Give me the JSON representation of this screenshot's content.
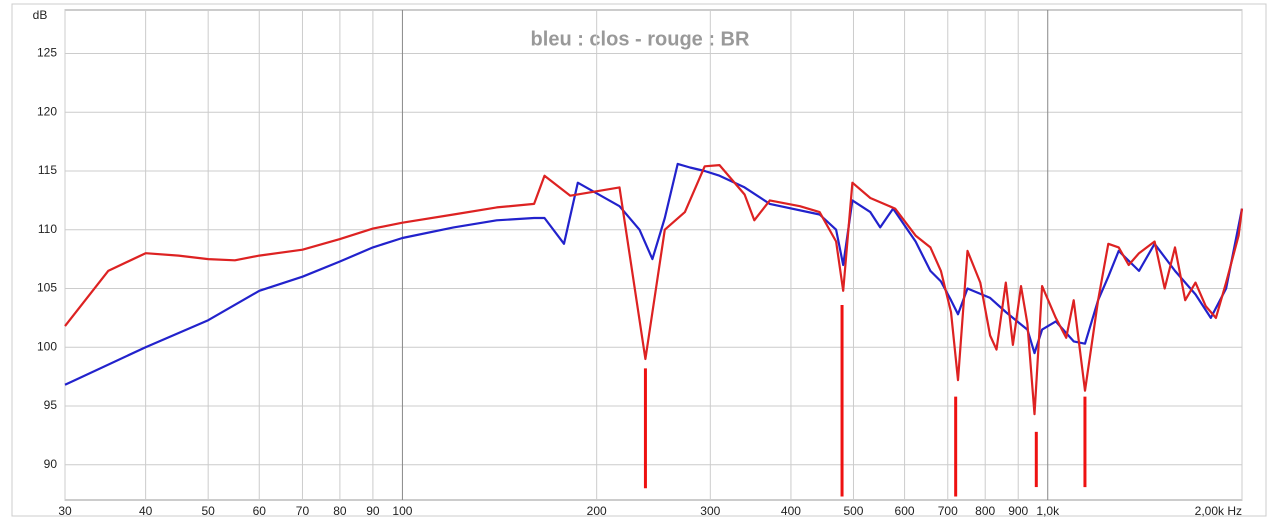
{
  "chart_data": {
    "type": "line",
    "title": "bleu : clos - rouge : BR",
    "y_label": "dB",
    "xscale": "log",
    "grid": true,
    "xlim": [
      30,
      2000
    ],
    "ylim": [
      87,
      128.7
    ],
    "xticks": [
      30,
      40,
      50,
      60,
      70,
      80,
      90,
      100,
      200,
      300,
      400,
      500,
      600,
      700,
      800,
      900,
      {
        "value": 1000,
        "label": "1,0k"
      },
      {
        "value": 2000,
        "label": "2,00k Hz"
      }
    ],
    "yticks": [
      90,
      95,
      100,
      105,
      110,
      115,
      120,
      125
    ],
    "series": [
      {
        "name": "bleu",
        "color": "#2222cc",
        "x": [
          30,
          40,
          50,
          60,
          70,
          80,
          90,
          100,
          120,
          140,
          160,
          166,
          178,
          187,
          217,
          233,
          244,
          255,
          267,
          279,
          294,
          310,
          339,
          371,
          443,
          470,
          482,
          498,
          531,
          550,
          576,
          624,
          658,
          683,
          708,
          726,
          751,
          814,
          861,
          883,
          930,
          954,
          980,
          1029,
          1097,
          1142,
          1197,
          1241,
          1288,
          1385,
          1464,
          1575,
          1694,
          1789,
          1890,
          2000
        ],
        "values": [
          96.8,
          100,
          102.3,
          104.8,
          106,
          107.3,
          108.5,
          109.3,
          110.2,
          110.8,
          111,
          111,
          108.8,
          114,
          112,
          110,
          107.5,
          111,
          115.6,
          115.3,
          115,
          114.6,
          113.6,
          112.2,
          111.3,
          110,
          107,
          112.5,
          111.5,
          110.2,
          111.8,
          109,
          106.5,
          105.6,
          104,
          102.8,
          105,
          104.2,
          103,
          102.5,
          101.5,
          99.5,
          101.5,
          102.2,
          100.5,
          100.3,
          104,
          106,
          108.2,
          106.5,
          108.8,
          106.5,
          104.5,
          102.5,
          105,
          111.8
        ]
      },
      {
        "name": "rouge",
        "color": "#dd2222",
        "x": [
          30,
          35,
          40,
          45,
          50,
          55,
          60,
          70,
          80,
          90,
          100,
          120,
          140,
          160,
          166,
          182,
          217,
          238,
          255,
          274,
          294,
          310,
          339,
          351,
          371,
          413,
          443,
          470,
          482,
          498,
          531,
          580,
          624,
          658,
          683,
          708,
          726,
          751,
          786,
          814,
          833,
          861,
          883,
          909,
          930,
          954,
          980,
          1029,
          1068,
          1097,
          1142,
          1197,
          1241,
          1288,
          1335,
          1385,
          1464,
          1518,
          1575,
          1633,
          1694,
          1757,
          1822,
          1890,
          1976,
          2000
        ],
        "values": [
          101.8,
          106.5,
          108,
          107.8,
          107.5,
          107.4,
          107.8,
          108.3,
          109.2,
          110.1,
          110.6,
          111.3,
          111.9,
          112.2,
          114.6,
          112.9,
          113.6,
          99,
          110,
          111.5,
          115.4,
          115.5,
          113,
          110.8,
          112.5,
          112,
          111.5,
          109,
          104.8,
          114,
          112.7,
          111.8,
          109.5,
          108.5,
          106.5,
          103,
          97.2,
          108.2,
          105.5,
          101,
          99.8,
          105.5,
          100.2,
          105.2,
          102,
          94.3,
          105.2,
          102.5,
          100.8,
          104,
          96.3,
          104,
          108.8,
          108.5,
          107,
          108,
          109,
          105,
          108.5,
          104,
          105.5,
          103.5,
          102.5,
          105.5,
          109.5,
          111.8
        ]
      }
    ],
    "markers": {
      "color": "#ee1111",
      "x": [
        238,
        480,
        720,
        960,
        1142
      ],
      "top": [
        98.2,
        103.6,
        95.8,
        92.8,
        95.8
      ],
      "bottom": [
        88,
        87.3,
        87.3,
        88.1,
        88.1
      ]
    }
  }
}
